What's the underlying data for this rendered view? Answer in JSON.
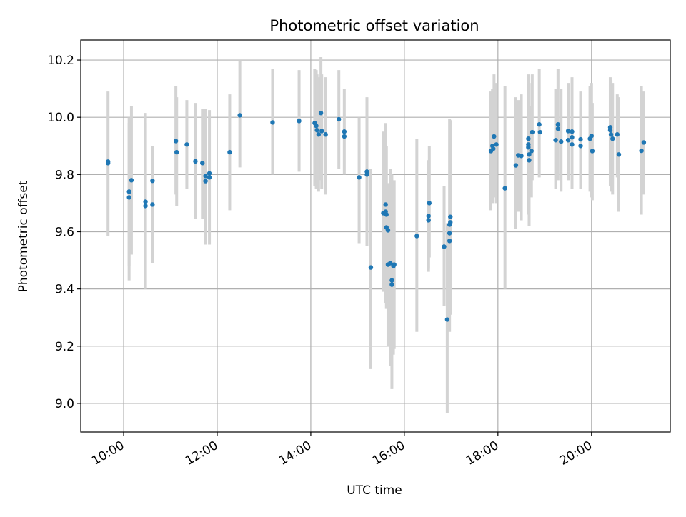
{
  "chart_data": {
    "type": "scatter",
    "title": "Photometric offset variation",
    "xlabel": "UTC time",
    "ylabel": "Photometric offset",
    "x_unit": "time of day (HH:MM, UTC)",
    "xlim": [
      "09:05",
      "21:41"
    ],
    "ylim": [
      8.9,
      10.27
    ],
    "xticks": [
      "10:00",
      "12:00",
      "14:00",
      "16:00",
      "18:00",
      "20:00"
    ],
    "yticks": [
      9.0,
      9.2,
      9.4,
      9.6,
      9.8,
      10.0,
      10.2
    ],
    "ytick_labels": [
      "9.0",
      "9.2",
      "9.4",
      "9.6",
      "9.8",
      "10.0",
      "10.2"
    ],
    "grid": true,
    "marker_color": "#1f77b4",
    "errorbar_color": "#d3d3d3",
    "points": [
      {
        "x": "09:40",
        "y": 9.845,
        "ylo": 9.585,
        "yhi": 10.09
      },
      {
        "x": "09:40",
        "y": 9.84
      },
      {
        "x": "10:07",
        "y": 9.74,
        "ylo": 9.43,
        "yhi": 10.0
      },
      {
        "x": "10:07",
        "y": 9.72,
        "ylo": 9.48,
        "yhi": 9.98
      },
      {
        "x": "10:10",
        "y": 9.78,
        "ylo": 9.52,
        "yhi": 10.04
      },
      {
        "x": "10:28",
        "y": 9.705,
        "ylo": 9.4,
        "yhi": 10.015
      },
      {
        "x": "10:28",
        "y": 9.69,
        "ylo": 9.4,
        "yhi": 9.98
      },
      {
        "x": "10:37",
        "y": 9.778,
        "ylo": 9.66,
        "yhi": 9.9
      },
      {
        "x": "10:37",
        "y": 9.695,
        "ylo": 9.49,
        "yhi": 9.9
      },
      {
        "x": "11:07",
        "y": 9.917,
        "ylo": 9.73,
        "yhi": 10.11
      },
      {
        "x": "11:08",
        "y": 9.878,
        "ylo": 9.69,
        "yhi": 10.07
      },
      {
        "x": "11:21",
        "y": 9.905,
        "ylo": 9.75,
        "yhi": 10.06
      },
      {
        "x": "11:32",
        "y": 9.846,
        "ylo": 9.645,
        "yhi": 10.05
      },
      {
        "x": "11:41",
        "y": 9.84,
        "ylo": 9.645,
        "yhi": 10.03
      },
      {
        "x": "11:45",
        "y": 9.795,
        "ylo": 9.555,
        "yhi": 10.03
      },
      {
        "x": "11:45",
        "y": 9.777
      },
      {
        "x": "11:50",
        "y": 9.804,
        "ylo": 9.555,
        "yhi": 10.025
      },
      {
        "x": "11:50",
        "y": 9.79
      },
      {
        "x": "12:16",
        "y": 9.878,
        "ylo": 9.675,
        "yhi": 10.08
      },
      {
        "x": "12:29",
        "y": 10.007,
        "ylo": 9.825,
        "yhi": 10.195
      },
      {
        "x": "13:11",
        "y": 9.982,
        "ylo": 9.8,
        "yhi": 10.17
      },
      {
        "x": "13:45",
        "y": 9.987,
        "ylo": 9.81,
        "yhi": 10.165
      },
      {
        "x": "14:05",
        "y": 9.98,
        "ylo": 9.76,
        "yhi": 10.17
      },
      {
        "x": "14:07",
        "y": 9.97,
        "ylo": 9.75,
        "yhi": 10.165
      },
      {
        "x": "14:08",
        "y": 9.955,
        "ylo": 9.77,
        "yhi": 10.15
      },
      {
        "x": "14:10",
        "y": 9.94,
        "ylo": 9.74,
        "yhi": 10.14
      },
      {
        "x": "14:13",
        "y": 10.015,
        "ylo": 9.78,
        "yhi": 10.21
      },
      {
        "x": "14:14",
        "y": 9.952,
        "ylo": 9.75,
        "yhi": 10.15
      },
      {
        "x": "14:19",
        "y": 9.94,
        "ylo": 9.73,
        "yhi": 10.14
      },
      {
        "x": "14:36",
        "y": 9.993,
        "ylo": 9.82,
        "yhi": 10.165
      },
      {
        "x": "14:43",
        "y": 9.95,
        "ylo": 9.8,
        "yhi": 10.1
      },
      {
        "x": "14:43",
        "y": 9.933
      },
      {
        "x": "15:02",
        "y": 9.79,
        "ylo": 9.56,
        "yhi": 10.0
      },
      {
        "x": "15:12",
        "y": 9.81,
        "ylo": 9.55,
        "yhi": 10.07
      },
      {
        "x": "15:12",
        "y": 9.8
      },
      {
        "x": "15:17",
        "y": 9.475,
        "ylo": 9.12,
        "yhi": 9.82
      },
      {
        "x": "15:33",
        "y": 9.665,
        "ylo": 9.39,
        "yhi": 9.95
      },
      {
        "x": "15:36",
        "y": 9.695,
        "ylo": 9.4,
        "yhi": 9.98
      },
      {
        "x": "15:36",
        "y": 9.67,
        "ylo": 9.35,
        "yhi": 9.97
      },
      {
        "x": "15:37",
        "y": 9.66
      },
      {
        "x": "15:37",
        "y": 9.615,
        "ylo": 9.33,
        "yhi": 9.9
      },
      {
        "x": "15:39",
        "y": 9.605
      },
      {
        "x": "15:39",
        "y": 9.485,
        "ylo": 9.2,
        "yhi": 9.77
      },
      {
        "x": "15:42",
        "y": 9.49,
        "ylo": 9.13,
        "yhi": 9.82
      },
      {
        "x": "15:44",
        "y": 9.43,
        "ylo": 9.05,
        "yhi": 9.8
      },
      {
        "x": "15:44",
        "y": 9.415
      },
      {
        "x": "15:46",
        "y": 9.48,
        "ylo": 9.17,
        "yhi": 9.77
      },
      {
        "x": "15:47",
        "y": 9.485,
        "ylo": 9.19,
        "yhi": 9.78
      },
      {
        "x": "16:16",
        "y": 9.585,
        "ylo": 9.25,
        "yhi": 9.925
      },
      {
        "x": "16:31",
        "y": 9.655,
        "ylo": 9.47,
        "yhi": 9.85
      },
      {
        "x": "16:31",
        "y": 9.64,
        "ylo": 9.46,
        "yhi": 9.84
      },
      {
        "x": "16:32",
        "y": 9.7,
        "ylo": 9.51,
        "yhi": 9.9
      },
      {
        "x": "16:51",
        "y": 9.548,
        "ylo": 9.34,
        "yhi": 9.76
      },
      {
        "x": "16:55",
        "y": 9.293,
        "ylo": 8.965,
        "yhi": 9.63
      },
      {
        "x": "16:58",
        "y": 9.625,
        "ylo": 9.25,
        "yhi": 9.995
      },
      {
        "x": "16:58",
        "y": 9.595
      },
      {
        "x": "16:58",
        "y": 9.568
      },
      {
        "x": "16:59",
        "y": 9.652,
        "ylo": 9.31,
        "yhi": 9.99
      },
      {
        "x": "16:59",
        "y": 9.633
      },
      {
        "x": "17:51",
        "y": 9.882,
        "ylo": 9.675,
        "yhi": 10.09
      },
      {
        "x": "17:53",
        "y": 9.9,
        "ylo": 9.7,
        "yhi": 10.1
      },
      {
        "x": "17:54",
        "y": 9.89,
        "ylo": 9.72,
        "yhi": 10.07
      },
      {
        "x": "17:55",
        "y": 9.933,
        "ylo": 9.72,
        "yhi": 10.15
      },
      {
        "x": "17:58",
        "y": 9.905,
        "ylo": 9.7,
        "yhi": 10.12
      },
      {
        "x": "18:09",
        "y": 9.752,
        "ylo": 9.4,
        "yhi": 10.11
      },
      {
        "x": "18:23",
        "y": 9.832,
        "ylo": 9.61,
        "yhi": 10.07
      },
      {
        "x": "18:26",
        "y": 9.867,
        "ylo": 9.67,
        "yhi": 10.06
      },
      {
        "x": "18:30",
        "y": 9.865,
        "ylo": 9.64,
        "yhi": 10.08
      },
      {
        "x": "18:39",
        "y": 9.925,
        "ylo": 9.66,
        "yhi": 10.15
      },
      {
        "x": "18:39",
        "y": 9.905
      },
      {
        "x": "18:39",
        "y": 9.895
      },
      {
        "x": "18:40",
        "y": 9.87,
        "ylo": 9.62,
        "yhi": 10.12
      },
      {
        "x": "18:40",
        "y": 9.85
      },
      {
        "x": "18:43",
        "y": 9.882,
        "ylo": 9.72,
        "yhi": 10.04
      },
      {
        "x": "18:44",
        "y": 9.948,
        "ylo": 9.78,
        "yhi": 10.15
      },
      {
        "x": "18:53",
        "y": 9.975,
        "ylo": 9.79,
        "yhi": 10.17
      },
      {
        "x": "18:54",
        "y": 9.948
      },
      {
        "x": "19:14",
        "y": 9.92,
        "ylo": 9.75,
        "yhi": 10.1
      },
      {
        "x": "19:17",
        "y": 9.975,
        "ylo": 9.78,
        "yhi": 10.17
      },
      {
        "x": "19:17",
        "y": 9.96
      },
      {
        "x": "19:21",
        "y": 9.915,
        "ylo": 9.74,
        "yhi": 10.1
      },
      {
        "x": "19:30",
        "y": 9.952,
        "ylo": 9.78,
        "yhi": 10.12
      },
      {
        "x": "19:30",
        "y": 9.92
      },
      {
        "x": "19:35",
        "y": 9.95,
        "ylo": 9.75,
        "yhi": 10.14
      },
      {
        "x": "19:35",
        "y": 9.93
      },
      {
        "x": "19:35",
        "y": 9.905
      },
      {
        "x": "19:46",
        "y": 9.923,
        "ylo": 9.75,
        "yhi": 10.09
      },
      {
        "x": "19:46",
        "y": 9.9
      },
      {
        "x": "19:58",
        "y": 9.925,
        "ylo": 9.74,
        "yhi": 10.11
      },
      {
        "x": "20:00",
        "y": 9.935,
        "ylo": 9.72,
        "yhi": 10.12
      },
      {
        "x": "20:01",
        "y": 9.882,
        "ylo": 9.71,
        "yhi": 10.05
      },
      {
        "x": "20:24",
        "y": 9.965,
        "ylo": 9.76,
        "yhi": 10.14
      },
      {
        "x": "20:24",
        "y": 9.955
      },
      {
        "x": "20:25",
        "y": 9.94,
        "ylo": 9.74,
        "yhi": 10.13
      },
      {
        "x": "20:27",
        "y": 9.925,
        "ylo": 9.73,
        "yhi": 10.12
      },
      {
        "x": "20:33",
        "y": 9.94,
        "ylo": 9.79,
        "yhi": 10.08
      },
      {
        "x": "20:35",
        "y": 9.87,
        "ylo": 9.67,
        "yhi": 10.07
      },
      {
        "x": "21:04",
        "y": 9.883,
        "ylo": 9.66,
        "yhi": 10.11
      },
      {
        "x": "21:07",
        "y": 9.912,
        "ylo": 9.73,
        "yhi": 10.09
      }
    ]
  }
}
